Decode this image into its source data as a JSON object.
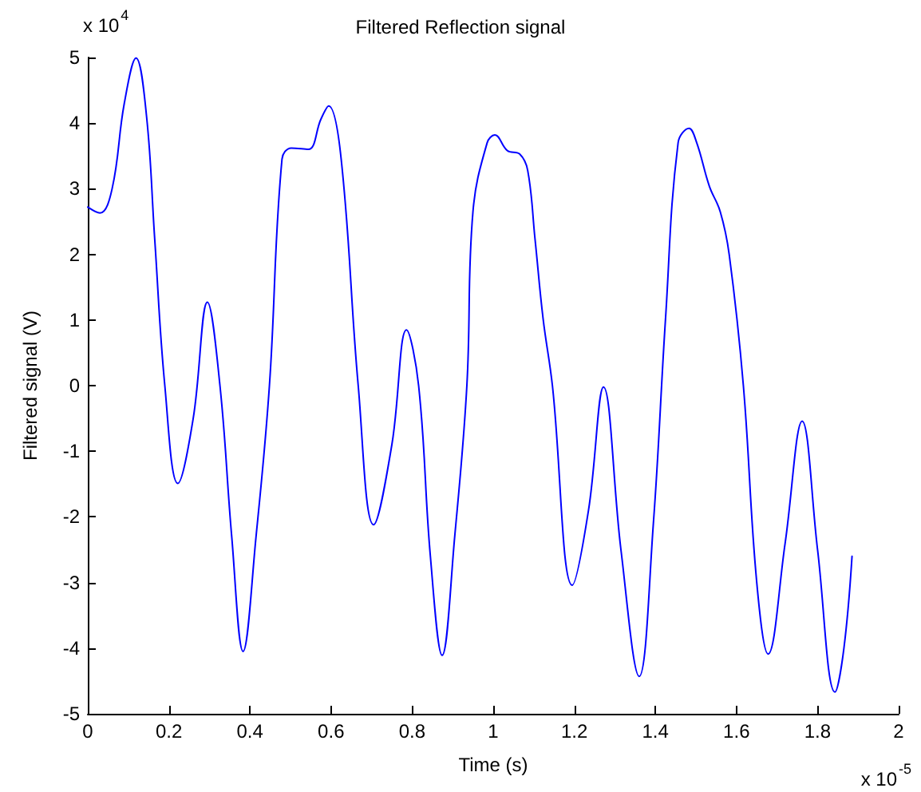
{
  "chart_data": {
    "type": "line",
    "title": "Filtered Reflection signal",
    "xlabel": "Time (s)",
    "ylabel": "Filtered signal (V)",
    "annotations": [
      "x 10$^{4}$",
      "x 10$^{-5}$"
    ],
    "series": [
      {
        "color": "#0000ff",
        "x": [
          0,
          0.03,
          0.06,
          0.09,
          0.119,
          0.145,
          0.165,
          0.19,
          0.222,
          0.26,
          0.295,
          0.326,
          0.355,
          0.383,
          0.415,
          0.448,
          0.479,
          0.502,
          0.544,
          0.575,
          0.594,
          0.625,
          0.667,
          0.705,
          0.75,
          0.786,
          0.816,
          0.845,
          0.874,
          0.905,
          0.935,
          0.95,
          0.985,
          1.004,
          1.035,
          1.065,
          1.085,
          1.103,
          1.123,
          1.146,
          1.195,
          1.235,
          1.272,
          1.315,
          1.36,
          1.395,
          1.425,
          1.456,
          1.483,
          1.502,
          1.533,
          1.56,
          1.582,
          1.617,
          1.65,
          1.678,
          1.72,
          1.762,
          1.8,
          1.843,
          1.865,
          1.885
        ],
        "values": [
          2.72,
          2.63,
          3.0,
          4.3,
          4.99,
          4.1,
          2.24,
          0,
          -1.49,
          -0.5,
          1.27,
          0,
          -2.3,
          -4.05,
          -2.3,
          0,
          3.45,
          3.62,
          3.6,
          4.06,
          4.26,
          3.45,
          0,
          -2.12,
          -0.9,
          0.85,
          0,
          -2.6,
          -4.11,
          -2.3,
          0,
          2.65,
          3.7,
          3.82,
          3.58,
          3.53,
          3.28,
          2.24,
          1.02,
          0,
          -3.04,
          -1.9,
          -0.02,
          -2.5,
          -4.43,
          -2.1,
          1.02,
          3.7,
          3.92,
          3.7,
          3.04,
          2.65,
          2.0,
          0,
          -3.0,
          -4.09,
          -2.4,
          -0.54,
          -2.5,
          -4.67,
          -4.0,
          -2.6
        ]
      }
    ],
    "xlim": [
      0,
      2
    ],
    "xticks": [
      0,
      0.2,
      0.4,
      0.6,
      0.8,
      1,
      1.2,
      1.4,
      1.6,
      1.8,
      2
    ],
    "ylim": [
      -5,
      5
    ],
    "yticks": [
      -5,
      -4,
      -3,
      -2,
      -1,
      0,
      1,
      2,
      3,
      4,
      5
    ],
    "grid": false,
    "marker": "none",
    "line_style": "solid"
  }
}
